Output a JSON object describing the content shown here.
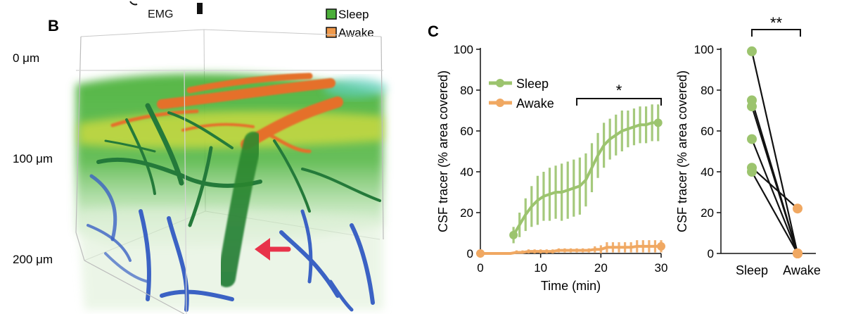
{
  "top_fragment": {
    "label": "EMG"
  },
  "panel_b": {
    "letter": "B",
    "legend": [
      {
        "label": "Sleep",
        "color": "#4caf3a"
      },
      {
        "label": "Awake",
        "color": "#f0994a"
      }
    ],
    "depth_labels": [
      "0 μm",
      "100 μm",
      "200 μm"
    ]
  },
  "panel_c": {
    "letter": "C"
  },
  "chart_data": [
    {
      "type": "line",
      "xlabel": "Time (min)",
      "ylabel": "CSF tracer (% area covered)",
      "xlim": [
        0,
        30
      ],
      "ylim": [
        0,
        100
      ],
      "xticks": [
        "0",
        "10",
        "20",
        "30"
      ],
      "yticks": [
        "0",
        "20",
        "40",
        "60",
        "80",
        "100"
      ],
      "legend_position": "top-left",
      "significance": {
        "label": "*",
        "x_range": [
          16,
          30
        ]
      },
      "series": [
        {
          "name": "Sleep",
          "color": "#9cc46e",
          "x": [
            5.5,
            6.5,
            7.5,
            8.5,
            9.5,
            10.5,
            11.5,
            12.5,
            13.5,
            14.5,
            15.5,
            16.5,
            17.5,
            18.5,
            19.5,
            20.5,
            21.5,
            22.5,
            23.5,
            24.5,
            25.5,
            26.5,
            27.5,
            28.5,
            29.5
          ],
          "values": [
            9,
            14,
            19,
            23,
            26,
            28,
            29,
            30,
            30,
            31,
            32,
            33,
            36,
            42,
            48,
            53,
            56,
            58,
            60,
            61,
            62,
            63,
            63,
            64,
            64
          ],
          "error": [
            4,
            6,
            8,
            10,
            12,
            12,
            13,
            13,
            14,
            14,
            14,
            14,
            13,
            12,
            11,
            11,
            10,
            10,
            10,
            9,
            9,
            9,
            9,
            9,
            9
          ]
        },
        {
          "name": "Awake",
          "color": "#f0a862",
          "x": [
            0,
            1,
            2,
            3,
            4,
            5,
            6,
            7,
            8,
            9,
            10,
            11,
            12,
            13,
            14,
            15,
            16,
            17,
            18,
            19,
            20,
            21,
            22,
            23,
            24,
            25,
            26,
            27,
            28,
            29,
            30
          ],
          "values": [
            0,
            0,
            0,
            0,
            0,
            0,
            0.5,
            0.5,
            1,
            1,
            1,
            1,
            1,
            1.5,
            1.5,
            1.5,
            1.5,
            1.5,
            1.5,
            2,
            2,
            3,
            3,
            3,
            3,
            3,
            3.5,
            3.5,
            3.5,
            3.5,
            3.5
          ],
          "error": [
            0.5,
            0.5,
            0.5,
            0.5,
            0.5,
            0.5,
            1,
            1,
            1,
            1,
            1,
            1,
            1,
            1,
            1,
            1,
            1,
            1,
            1,
            1.5,
            2,
            2.5,
            2.5,
            2.5,
            2.5,
            2.5,
            3,
            3,
            3,
            3,
            3
          ]
        }
      ]
    },
    {
      "type": "scatter",
      "ylabel": "CSF tracer (% area covered)",
      "categories": [
        "Sleep",
        "Awake"
      ],
      "ylim": [
        0,
        100
      ],
      "yticks": [
        "0",
        "20",
        "40",
        "60",
        "80",
        "100"
      ],
      "significance": {
        "label": "**"
      },
      "pairs": [
        {
          "sleep": 99,
          "awake": 0
        },
        {
          "sleep": 75,
          "awake": 0
        },
        {
          "sleep": 72,
          "awake": 0
        },
        {
          "sleep": 56,
          "awake": 0
        },
        {
          "sleep": 42,
          "awake": 22
        },
        {
          "sleep": 40,
          "awake": 0
        }
      ],
      "colors": {
        "sleep": "#9cc46e",
        "awake": "#f0a862",
        "line": "#111111"
      }
    }
  ]
}
